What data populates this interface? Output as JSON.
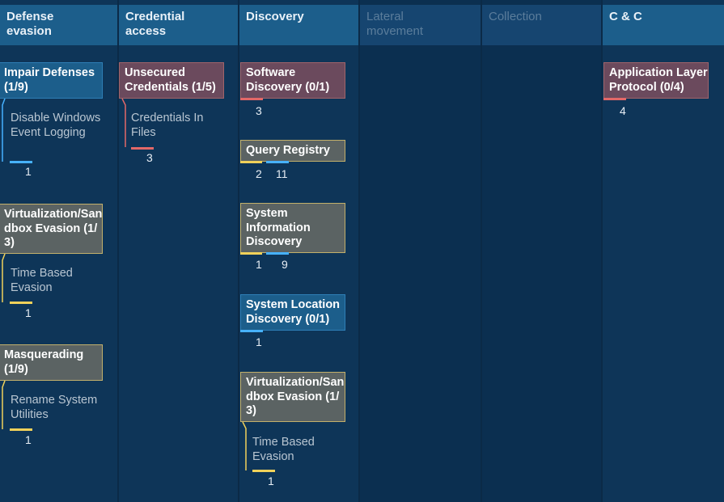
{
  "columns": [
    {
      "title": "Defense evasion"
    },
    {
      "title": "Credential access"
    },
    {
      "title": "Discovery"
    },
    {
      "title": "Lateral movement"
    },
    {
      "title": "Collection"
    },
    {
      "title": "C & C"
    }
  ],
  "defense_evasion": {
    "impair_defenses": {
      "title": "Impair Defenses (1/9)",
      "sub": "Disable Windows Event Logging",
      "count": "1"
    },
    "virtualization": {
      "title": "Virtualization/Sandbox Evasion (1/3)",
      "sub": "Time Based Evasion",
      "count": "1"
    },
    "masquerading": {
      "title": "Masquerading (1/9)",
      "sub": "Rename System Utilities",
      "count": "1"
    }
  },
  "credential_access": {
    "unsecured": {
      "title": "Unsecured Credentials (1/5)",
      "sub": "Credentials In Files",
      "count": "3"
    }
  },
  "discovery": {
    "software": {
      "title": "Software Discovery (0/1)",
      "count": "3"
    },
    "query_registry": {
      "title": "Query Registry",
      "count_a": "2",
      "count_b": "11"
    },
    "system_info": {
      "title": "System Information Discovery",
      "count_a": "1",
      "count_b": "9"
    },
    "system_location": {
      "title": "System Location Discovery (0/1)",
      "count": "1"
    },
    "virtualization": {
      "title": "Virtualization/Sandbox Evasion (1/3)",
      "sub": "Time Based Evasion",
      "count": "1"
    }
  },
  "cnc": {
    "app_layer": {
      "title": "Application Layer Protocol (0/4)",
      "count": "4"
    }
  },
  "colors": {
    "background": "#0b2a47",
    "column": "#0e3558",
    "header": "#1c5e8b",
    "red_card": "#6b4a5d",
    "olive_card": "#5b6363",
    "red_bar": "#e36868",
    "yellow_bar": "#f0d15a",
    "blue_bar": "#47b2ff"
  }
}
